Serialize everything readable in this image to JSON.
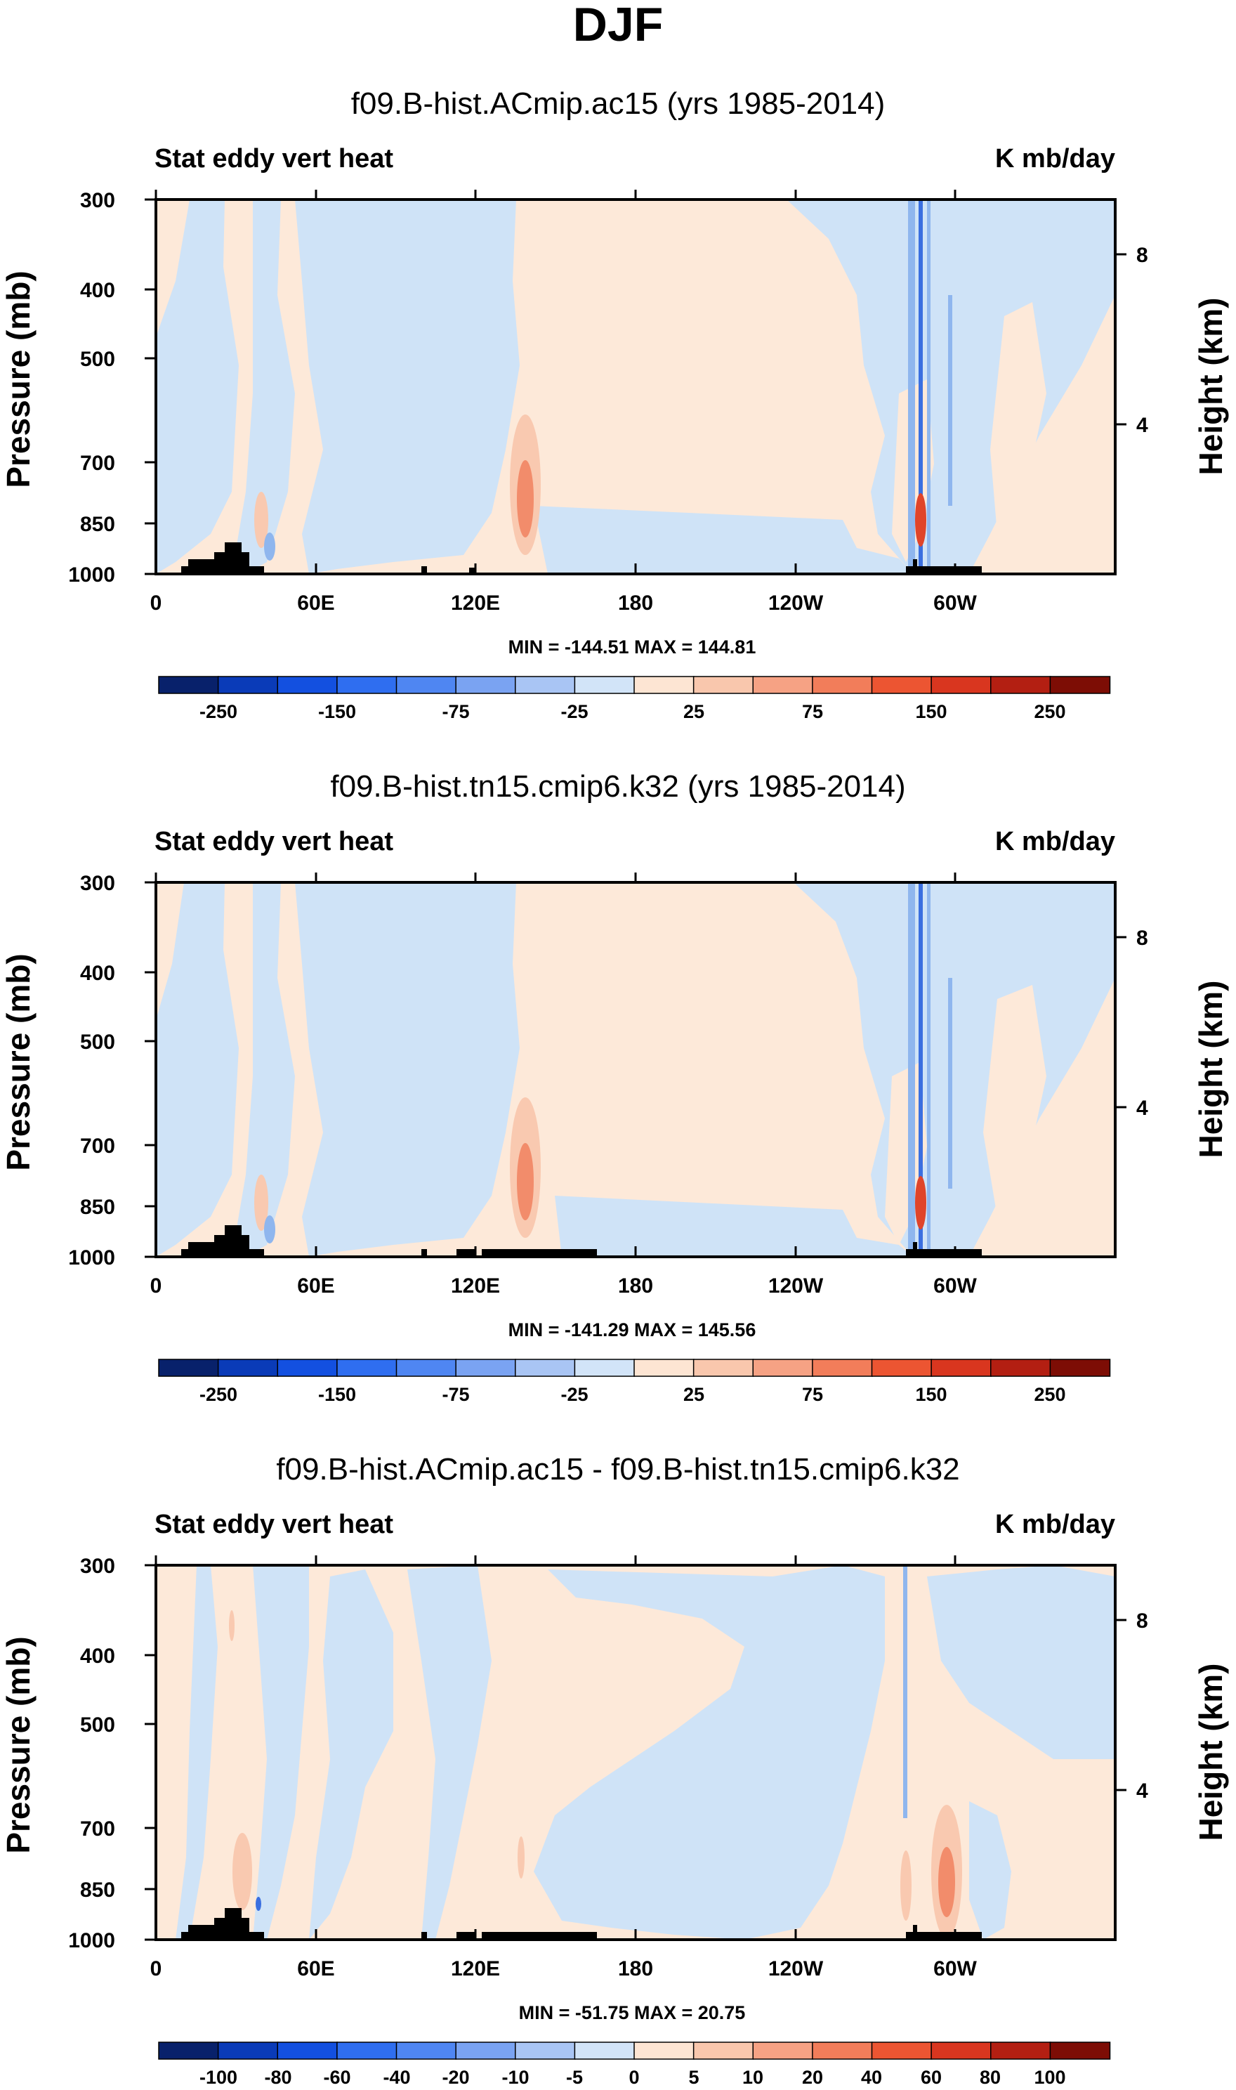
{
  "figure": {
    "title": "DJF",
    "colors": {
      "panel_base": "#fde9d9",
      "blue_light": "#cfe3f7",
      "blue_mid": "#8fb6ee",
      "blue_dark": "#3b6fe0",
      "red_light": "#f9c9b0",
      "red_mid": "#f28c6b",
      "red_dark": "#e0442a",
      "land": "#000000"
    }
  },
  "chart_data": [
    {
      "type": "heatmap",
      "title": "f09.B-hist.ACmip.ac15 (yrs 1985-2014)",
      "left_label": "Stat eddy vert heat",
      "units": "K mb/day",
      "ylabel": "Pressure (mb)",
      "ylabel_right": "Height (km)",
      "x_ticks": [
        "0",
        "60E",
        "120E",
        "180",
        "120W",
        "60W"
      ],
      "y_ticks": [
        "300",
        "400",
        "500",
        "700",
        "850",
        "1000"
      ],
      "right_ticks": [
        "8",
        "4"
      ],
      "min": -144.51,
      "max": 144.81,
      "minmax_text": "MIN = -144.51   MAX = 144.81",
      "colorbar_labels": [
        "-250",
        "-150",
        "-75",
        "-25",
        "25",
        "75",
        "150",
        "250"
      ],
      "colorbar_colors": [
        "#08216b",
        "#0a3bb8",
        "#1350e0",
        "#2f6ef0",
        "#4f86f2",
        "#7aa3f2",
        "#a9c5f4",
        "#d2e4f8",
        "#fde5d3",
        "#f9c7ad",
        "#f6a284",
        "#f27d5a",
        "#ec5532",
        "#d9361f",
        "#b31f12",
        "#7d0d05"
      ]
    },
    {
      "type": "heatmap",
      "title": "f09.B-hist.tn15.cmip6.k32 (yrs 1985-2014)",
      "left_label": "Stat eddy vert heat",
      "units": "K mb/day",
      "ylabel": "Pressure (mb)",
      "ylabel_right": "Height (km)",
      "x_ticks": [
        "0",
        "60E",
        "120E",
        "180",
        "120W",
        "60W"
      ],
      "y_ticks": [
        "300",
        "400",
        "500",
        "700",
        "850",
        "1000"
      ],
      "right_ticks": [
        "8",
        "4"
      ],
      "min": -141.29,
      "max": 145.56,
      "minmax_text": "MIN = -141.29   MAX = 145.56",
      "colorbar_labels": [
        "-250",
        "-150",
        "-75",
        "-25",
        "25",
        "75",
        "150",
        "250"
      ],
      "colorbar_colors": [
        "#08216b",
        "#0a3bb8",
        "#1350e0",
        "#2f6ef0",
        "#4f86f2",
        "#7aa3f2",
        "#a9c5f4",
        "#d2e4f8",
        "#fde5d3",
        "#f9c7ad",
        "#f6a284",
        "#f27d5a",
        "#ec5532",
        "#d9361f",
        "#b31f12",
        "#7d0d05"
      ]
    },
    {
      "type": "heatmap",
      "title": "f09.B-hist.ACmip.ac15 - f09.B-hist.tn15.cmip6.k32",
      "left_label": "Stat eddy vert heat",
      "units": "K mb/day",
      "ylabel": "Pressure (mb)",
      "ylabel_right": "Height (km)",
      "x_ticks": [
        "0",
        "60E",
        "120E",
        "180",
        "120W",
        "60W"
      ],
      "y_ticks": [
        "300",
        "400",
        "500",
        "700",
        "850",
        "1000"
      ],
      "right_ticks": [
        "8",
        "4"
      ],
      "min": -51.75,
      "max": 20.75,
      "minmax_text": "MIN = -51.75   MAX =  20.75",
      "colorbar_labels": [
        "-100",
        "-80",
        "-60",
        "-40",
        "-20",
        "-10",
        "-5",
        "0",
        "5",
        "10",
        "20",
        "40",
        "60",
        "80",
        "100"
      ],
      "colorbar_colors": [
        "#08216b",
        "#0a3bb8",
        "#1350e0",
        "#2f6ef0",
        "#4f86f2",
        "#7aa3f2",
        "#a9c5f4",
        "#d2e4f8",
        "#fde5d3",
        "#f9c7ad",
        "#f6a284",
        "#f27d5a",
        "#ec5532",
        "#d9361f",
        "#b31f12",
        "#7d0d05"
      ]
    }
  ]
}
